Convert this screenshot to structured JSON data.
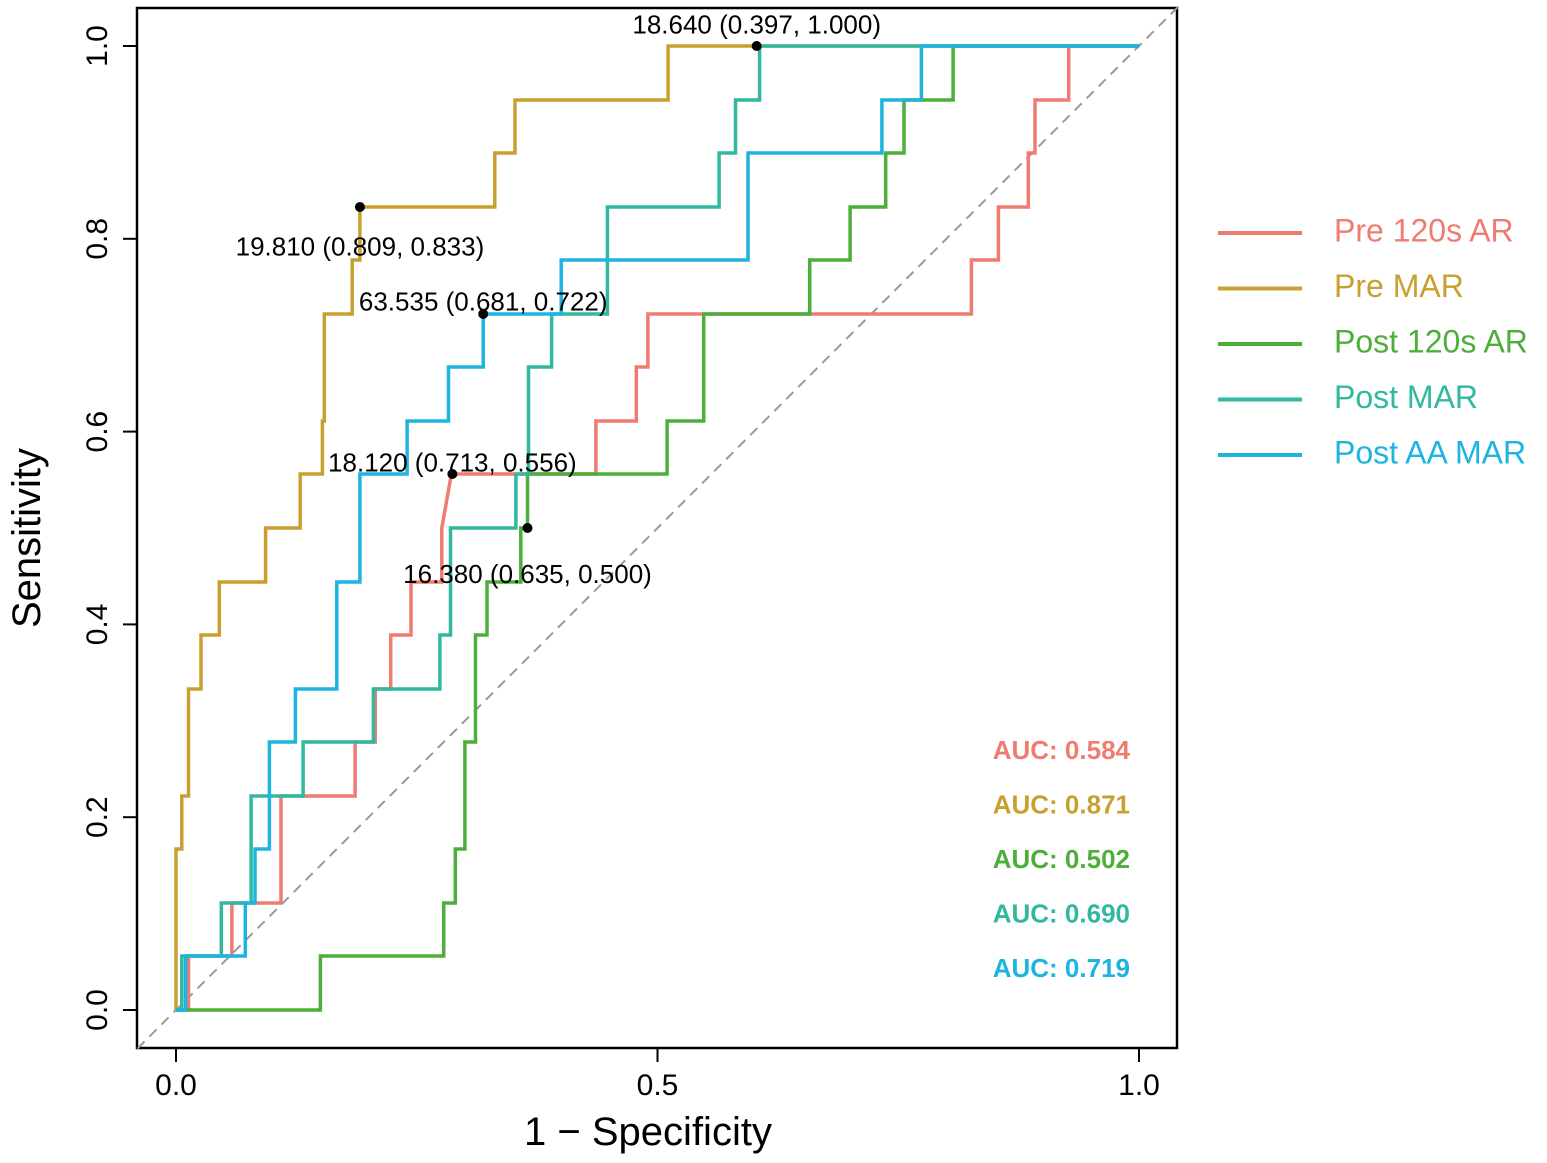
{
  "chart_data": {
    "type": "line",
    "title": "",
    "xlabel": "1 − Specificity",
    "ylabel": "Sensitivity",
    "xlim": [
      0,
      1
    ],
    "ylim": [
      0,
      1
    ],
    "x_ticks": [
      "0.0",
      "0.5",
      "1.0"
    ],
    "y_ticks": [
      "0.0",
      "0.2",
      "0.4",
      "0.6",
      "0.8",
      "1.0"
    ],
    "x_tick_values": [
      0,
      0.5,
      1
    ],
    "y_tick_values": [
      0,
      0.2,
      0.4,
      0.6,
      0.8,
      1.0
    ],
    "diagonal": true,
    "legend_position": "right",
    "series": [
      {
        "name": "Pre 120s AR",
        "color": "#F07B70",
        "auc_label": "AUC: 0.584",
        "x": [
          0,
          0.013,
          0.013,
          0.058,
          0.058,
          0.109,
          0.109,
          0.186,
          0.186,
          0.207,
          0.207,
          0.223,
          0.223,
          0.244,
          0.244,
          0.276,
          0.276,
          0.286,
          0.286,
          0.436,
          0.436,
          0.478,
          0.478,
          0.49,
          0.49,
          0.826,
          0.826,
          0.854,
          0.854,
          0.885,
          0.885,
          0.892,
          0.892,
          0.927,
          0.927
        ],
        "y": [
          0,
          0,
          0.056,
          0.056,
          0.111,
          0.111,
          0.222,
          0.222,
          0.278,
          0.278,
          0.333,
          0.333,
          0.389,
          0.389,
          0.444,
          0.444,
          0.5,
          0.556,
          0.556,
          0.556,
          0.611,
          0.611,
          0.667,
          0.667,
          0.722,
          0.722,
          0.778,
          0.778,
          0.833,
          0.833,
          0.889,
          0.889,
          0.944,
          0.944,
          1.0
        ]
      },
      {
        "name": "Pre MAR",
        "color": "#C8A030",
        "auc_label": "AUC: 0.871",
        "x": [
          0,
          0,
          0.006,
          0.006,
          0.013,
          0.013,
          0.026,
          0.026,
          0.045,
          0.045,
          0.093,
          0.093,
          0.129,
          0.129,
          0.152,
          0.152,
          0.154,
          0.154,
          0.183,
          0.183,
          0.191,
          0.191,
          0.331,
          0.331,
          0.352,
          0.352,
          0.511,
          0.511,
          1.0
        ],
        "y": [
          0,
          0.167,
          0.167,
          0.222,
          0.222,
          0.333,
          0.333,
          0.389,
          0.389,
          0.444,
          0.444,
          0.5,
          0.5,
          0.556,
          0.556,
          0.611,
          0.611,
          0.722,
          0.722,
          0.778,
          0.778,
          0.833,
          0.833,
          0.889,
          0.889,
          0.944,
          0.944,
          1.0,
          1.0
        ]
      },
      {
        "name": "Post 120s AR",
        "color": "#4CAF3A",
        "auc_label": "AUC: 0.502",
        "x": [
          0,
          0.15,
          0.15,
          0.278,
          0.278,
          0.29,
          0.29,
          0.3,
          0.3,
          0.311,
          0.311,
          0.323,
          0.323,
          0.358,
          0.358,
          0.365,
          0.365,
          0.51,
          0.51,
          0.548,
          0.548,
          0.658,
          0.658,
          0.7,
          0.7,
          0.737,
          0.737,
          0.756,
          0.756,
          0.807,
          0.807,
          0.83,
          0.83,
          0.874,
          0.874,
          1.0
        ],
        "y": [
          0,
          0,
          0.056,
          0.056,
          0.111,
          0.111,
          0.167,
          0.167,
          0.278,
          0.278,
          0.389,
          0.389,
          0.444,
          0.444,
          0.5,
          0.5,
          0.556,
          0.556,
          0.611,
          0.611,
          0.722,
          0.722,
          0.778,
          0.778,
          0.833,
          0.833,
          0.889,
          0.889,
          0.944,
          0.944,
          1.0,
          1.0,
          1.0,
          1.0,
          1.0,
          1.0
        ]
      },
      {
        "name": "Post MAR",
        "color": "#30B8A0",
        "auc_label": "AUC: 0.690",
        "x": [
          0,
          0.006,
          0.006,
          0.047,
          0.047,
          0.078,
          0.078,
          0.132,
          0.132,
          0.205,
          0.205,
          0.274,
          0.274,
          0.285,
          0.285,
          0.353,
          0.353,
          0.366,
          0.366,
          0.39,
          0.39,
          0.448,
          0.448,
          0.471,
          0.471,
          0.564,
          0.564,
          0.581,
          0.581,
          0.606,
          0.606,
          1.0
        ],
        "y": [
          0,
          0,
          0.056,
          0.056,
          0.111,
          0.111,
          0.222,
          0.222,
          0.278,
          0.278,
          0.333,
          0.333,
          0.389,
          0.389,
          0.5,
          0.5,
          0.556,
          0.556,
          0.667,
          0.667,
          0.722,
          0.722,
          0.833,
          0.833,
          0.833,
          0.833,
          0.889,
          0.889,
          0.944,
          0.944,
          1.0,
          1.0
        ]
      },
      {
        "name": "Post AA MAR",
        "color": "#1EB4E0",
        "auc_label": "AUC: 0.719",
        "x": [
          0,
          0.01,
          0.01,
          0.072,
          0.072,
          0.082,
          0.082,
          0.097,
          0.097,
          0.124,
          0.124,
          0.167,
          0.167,
          0.191,
          0.191,
          0.24,
          0.24,
          0.283,
          0.283,
          0.319,
          0.319,
          0.4,
          0.4,
          0.594,
          0.594,
          0.733,
          0.733,
          0.774,
          0.774,
          1.0
        ],
        "y": [
          0,
          0,
          0.056,
          0.056,
          0.111,
          0.111,
          0.167,
          0.167,
          0.278,
          0.278,
          0.333,
          0.333,
          0.444,
          0.444,
          0.556,
          0.556,
          0.611,
          0.611,
          0.667,
          0.667,
          0.722,
          0.722,
          0.778,
          0.778,
          0.889,
          0.889,
          0.944,
          0.944,
          1.0,
          1.0
        ]
      }
    ],
    "annotations": [
      {
        "text": "18.640 (0.397, 1.000)",
        "x": 0.603,
        "y": 1.0,
        "label_x": 0.603,
        "label_y": 1.02,
        "anchor": "middle"
      },
      {
        "text": "19.810 (0.809, 0.833)",
        "x": 0.191,
        "y": 0.833,
        "label_x": 0.191,
        "label_y": 0.79,
        "anchor": "middle"
      },
      {
        "text": "63.535 (0.681, 0.722)",
        "x": 0.319,
        "y": 0.722,
        "label_x": 0.319,
        "label_y": 0.733,
        "anchor": "middle"
      },
      {
        "text": "18.120 (0.713, 0.556)",
        "x": 0.287,
        "y": 0.556,
        "label_x": 0.287,
        "label_y": 0.566,
        "anchor": "middle"
      },
      {
        "text": "16.380 (0.635, 0.500)",
        "x": 0.365,
        "y": 0.5,
        "label_x": 0.365,
        "label_y": 0.45,
        "anchor": "middle"
      }
    ]
  }
}
